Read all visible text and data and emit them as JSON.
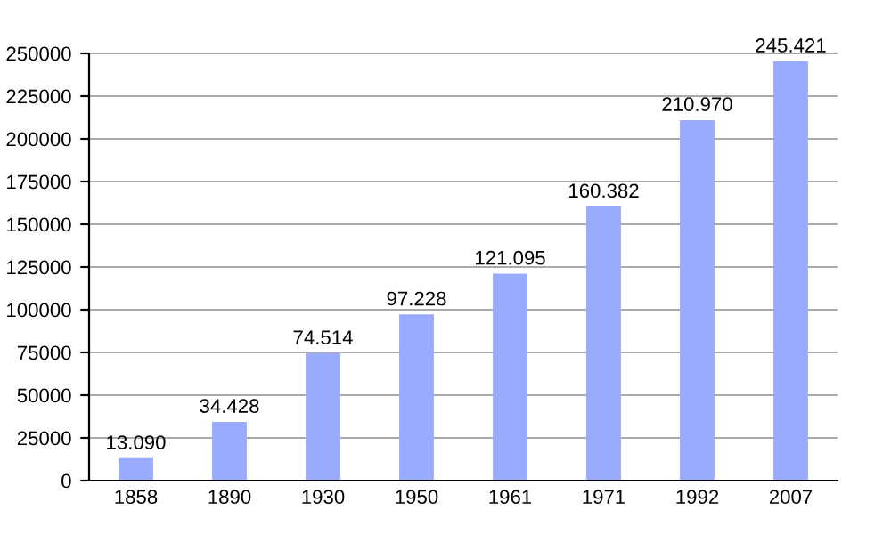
{
  "chart_data": {
    "type": "bar",
    "categories": [
      "1858",
      "1890",
      "1930",
      "1950",
      "1961",
      "1971",
      "1992",
      "2007"
    ],
    "values": [
      13090,
      34428,
      74514,
      97228,
      121095,
      160382,
      210970,
      245421
    ],
    "value_labels": [
      "13.090",
      "34.428",
      "74.514",
      "97.228",
      "121.095",
      "160.382",
      "210.970",
      "245.421"
    ],
    "color": "#99aaff",
    "ylim": [
      0,
      250000
    ],
    "yticks": [
      0,
      25000,
      50000,
      75000,
      100000,
      125000,
      150000,
      175000,
      200000,
      225000,
      250000
    ],
    "grid": "y"
  }
}
